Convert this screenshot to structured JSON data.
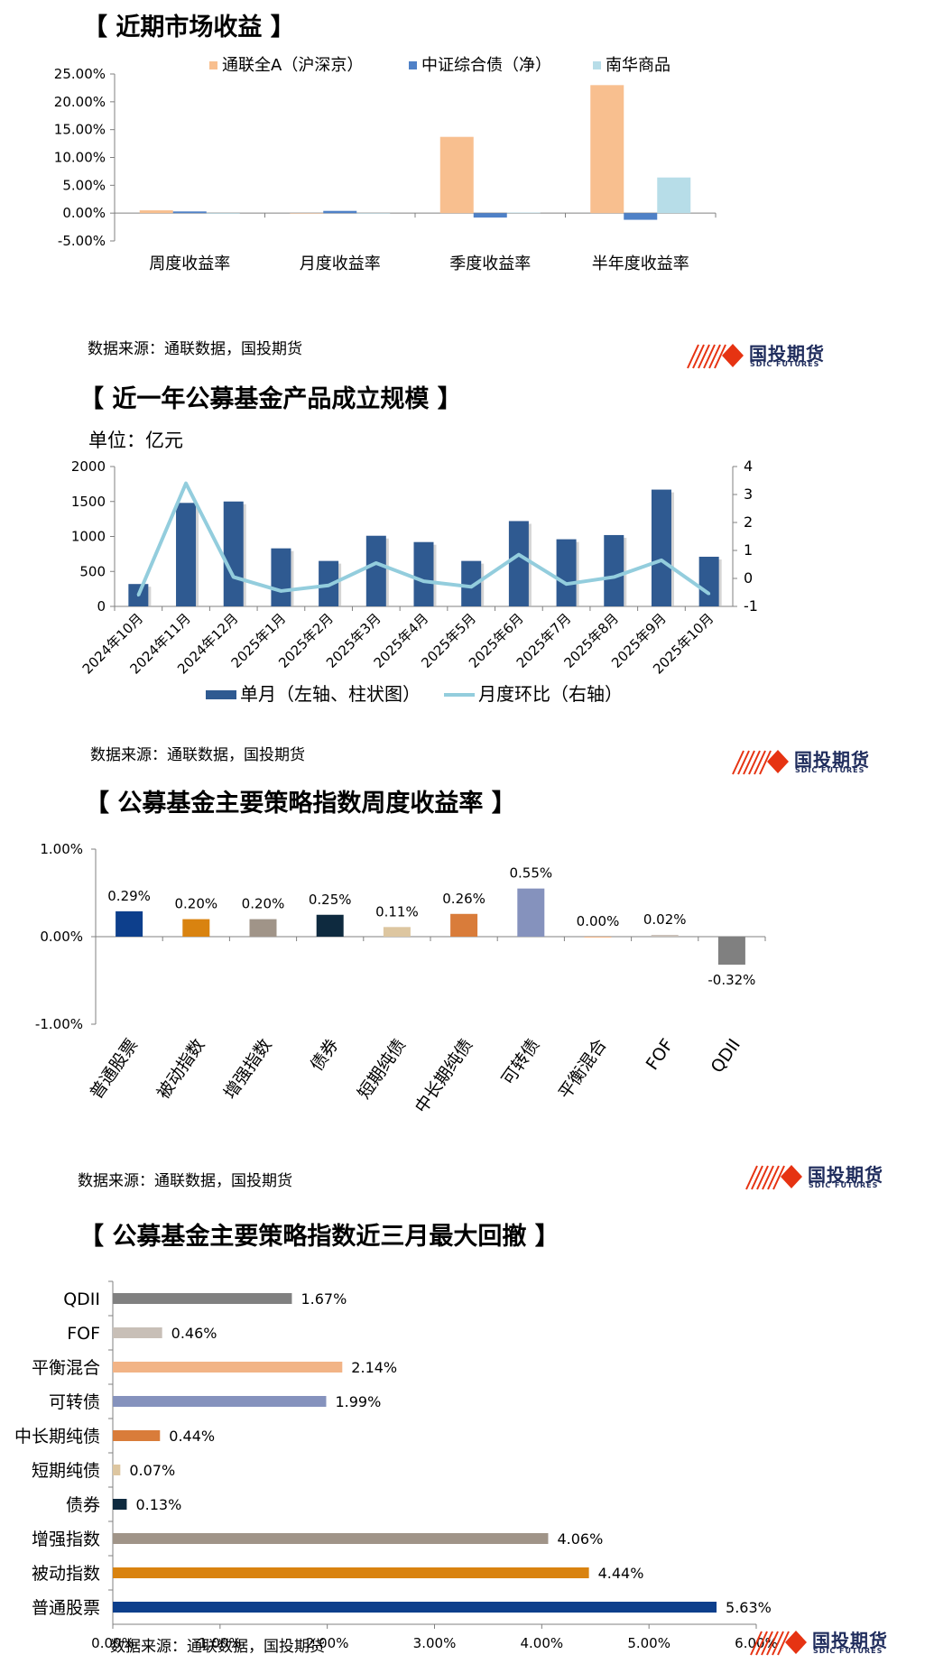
{
  "footer_source": "数据来源：通联数据，国投期货",
  "logo": {
    "text": "国投期货",
    "sub": "SDIC FUTURES",
    "red": "#e63312",
    "navy": "#1f2c5c"
  },
  "chart_data": [
    {
      "type": "bar",
      "title": "【 近期市场收益 】",
      "categories": [
        "周度收益率",
        "月度收益率",
        "季度收益率",
        "半年度收益率"
      ],
      "series": [
        {
          "name": "通联全A（沪深京）",
          "color": "#f8bf8f",
          "values": [
            0.5,
            0.0,
            13.7,
            23.0
          ]
        },
        {
          "name": "中证综合债（净）",
          "color": "#4f81c7",
          "values": [
            0.3,
            0.4,
            -0.8,
            -1.2
          ]
        },
        {
          "name": "南华商品",
          "color": "#b7dde8",
          "values": [
            -0.1,
            0.0,
            0.1,
            6.4
          ]
        }
      ],
      "yticks": [
        "-5.00%",
        "0.00%",
        "5.00%",
        "10.00%",
        "15.00%",
        "20.00%",
        "25.00%"
      ],
      "ylim": [
        -5,
        25
      ]
    },
    {
      "type": "bar+line",
      "title": "【 近一年公募基金产品成立规模 】",
      "unit": "单位：亿元",
      "categories": [
        "2024年10月",
        "2024年11月",
        "2024年12月",
        "2025年1月",
        "2025年2月",
        "2025年3月",
        "2025年4月",
        "2025年5月",
        "2025年6月",
        "2025年7月",
        "2025年8月",
        "2025年9月",
        "2025年10月"
      ],
      "bars": {
        "name": "单月（左轴、柱状图）",
        "color": "#2f5a91",
        "values": [
          320,
          1480,
          1500,
          830,
          650,
          1010,
          920,
          650,
          1220,
          960,
          1020,
          1670,
          710
        ]
      },
      "line": {
        "name": "月度环比（右轴）",
        "color": "#93cddd",
        "values": [
          -0.6,
          3.4,
          0.05,
          -0.45,
          -0.25,
          0.55,
          -0.1,
          -0.3,
          0.85,
          -0.2,
          0.05,
          0.65,
          -0.55
        ]
      },
      "yticks_left": [
        "0",
        "500",
        "1000",
        "1500",
        "2000"
      ],
      "ylim_left": [
        0,
        2000
      ],
      "yticks_right": [
        "-1",
        "0",
        "1",
        "2",
        "3",
        "4"
      ],
      "ylim_right": [
        -1,
        4
      ]
    },
    {
      "type": "bar",
      "title": "【 公募基金主要策略指数周度收益率 】",
      "categories": [
        "普通股票",
        "被动指数",
        "增强指数",
        "债券",
        "短期纯债",
        "中长期纯债",
        "可转债",
        "平衡混合",
        "FOF",
        "QDII"
      ],
      "values": [
        0.29,
        0.2,
        0.2,
        0.25,
        0.11,
        0.26,
        0.55,
        0.0,
        0.02,
        -0.32
      ],
      "labels": [
        "0.29%",
        "0.20%",
        "0.20%",
        "0.25%",
        "0.11%",
        "0.26%",
        "0.55%",
        "0.00%",
        "0.02%",
        "-0.32%"
      ],
      "colors": [
        "#0d3f8c",
        "#d98310",
        "#a09488",
        "#0e2a3f",
        "#ddc6a0",
        "#d97c3a",
        "#8592bd",
        "#f2b486",
        "#c8bfb7",
        "#808080"
      ],
      "yticks": [
        "-1.00%",
        "0.00%",
        "1.00%"
      ],
      "ylim": [
        -1,
        1
      ]
    },
    {
      "type": "bar-horizontal",
      "title": "【 公募基金主要策略指数近三月最大回撤 】",
      "categories": [
        "QDII",
        "FOF",
        "平衡混合",
        "可转债",
        "中长期纯债",
        "短期纯债",
        "债券",
        "增强指数",
        "被动指数",
        "普通股票"
      ],
      "values": [
        1.67,
        0.46,
        2.14,
        1.99,
        0.44,
        0.07,
        0.13,
        4.06,
        4.44,
        5.63
      ],
      "labels": [
        "1.67%",
        "0.46%",
        "2.14%",
        "1.99%",
        "0.44%",
        "0.07%",
        "0.13%",
        "4.06%",
        "4.44%",
        "5.63%"
      ],
      "colors": [
        "#808080",
        "#c8bfb7",
        "#f2b486",
        "#8592bd",
        "#d97c3a",
        "#ddc6a0",
        "#0e2a3f",
        "#a09488",
        "#d98310",
        "#0d3f8c"
      ],
      "xticks": [
        "0.00%",
        "1.00%",
        "2.00%",
        "3.00%",
        "4.00%",
        "5.00%",
        "6.00%"
      ],
      "xlim": [
        0,
        6
      ]
    }
  ]
}
